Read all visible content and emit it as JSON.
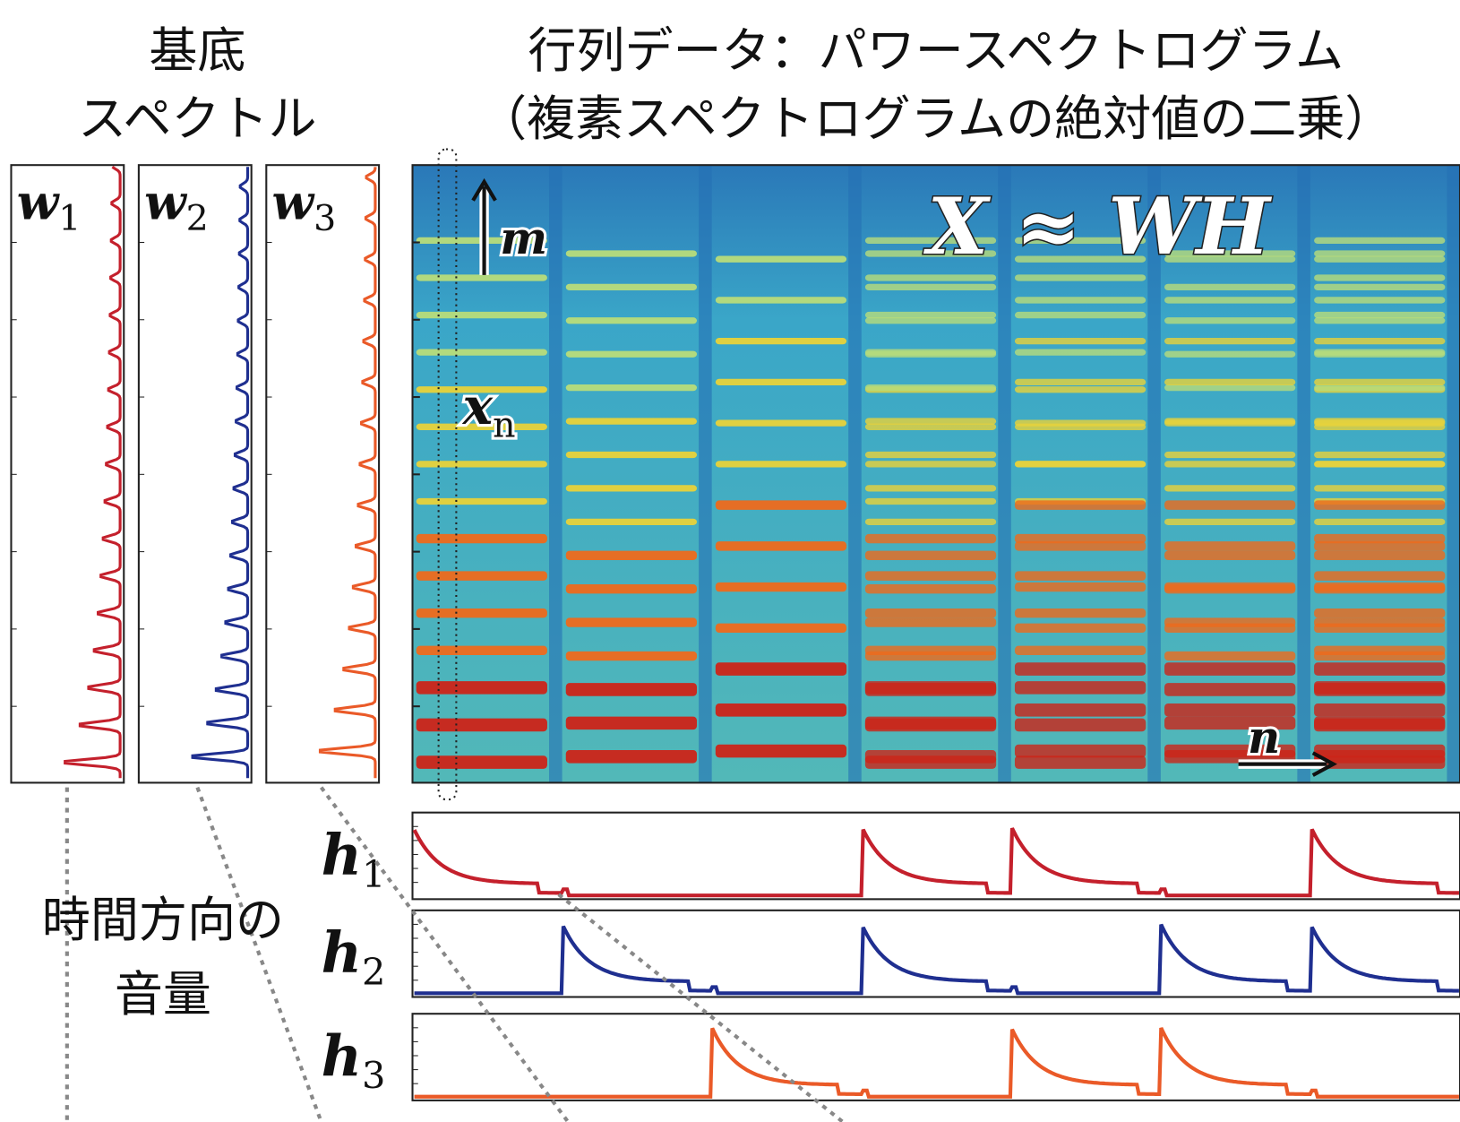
{
  "header": {
    "basis": [
      "基底",
      "スペクトル"
    ],
    "title": [
      "行列データ：パワースペクトログラム",
      "（複素スペクトログラムの絶対値の二乗）"
    ]
  },
  "basis_panels": [
    {
      "symbol": "w",
      "subscript": "1"
    },
    {
      "symbol": "w",
      "subscript": "2"
    },
    {
      "symbol": "w",
      "subscript": "3"
    }
  ],
  "spectrogram": {
    "equation": "X ≈ WH",
    "freq_axis": "m",
    "column": {
      "symbol": "x",
      "subscript": "n"
    },
    "time_axis": "n"
  },
  "activations": {
    "label": [
      "時間方向の",
      "音量"
    ],
    "rows": [
      {
        "symbol": "h",
        "subscript": "1"
      },
      {
        "symbol": "h",
        "subscript": "2"
      },
      {
        "symbol": "h",
        "subscript": "3"
      }
    ]
  }
}
